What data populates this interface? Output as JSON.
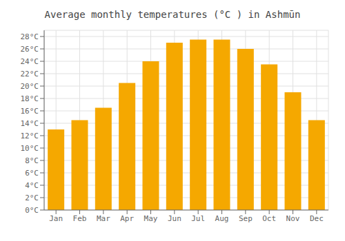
{
  "chart_data": {
    "type": "bar",
    "title": "Average monthly temperatures (°C ) in Ashmūn",
    "categories": [
      "Jan",
      "Feb",
      "Mar",
      "Apr",
      "May",
      "Jun",
      "Jul",
      "Aug",
      "Sep",
      "Oct",
      "Nov",
      "Dec"
    ],
    "values": [
      13.0,
      14.5,
      16.5,
      20.5,
      24.0,
      27.0,
      27.5,
      27.5,
      26.0,
      23.5,
      19.0,
      14.5
    ],
    "color": "#F5A800",
    "ylim": [
      0,
      29
    ],
    "yticks": [
      {
        "value": 0,
        "label": "0°C"
      },
      {
        "value": 2,
        "label": "2°C"
      },
      {
        "value": 4,
        "label": "4°C"
      },
      {
        "value": 6,
        "label": "6°C"
      },
      {
        "value": 8,
        "label": "8°C"
      },
      {
        "value": 10,
        "label": "10°C"
      },
      {
        "value": 12,
        "label": "12°C"
      },
      {
        "value": 14,
        "label": "14°C"
      },
      {
        "value": 16,
        "label": "16°C"
      },
      {
        "value": 18,
        "label": "18°C"
      },
      {
        "value": 20,
        "label": "20°C"
      },
      {
        "value": 22,
        "label": "22°C"
      },
      {
        "value": 24,
        "label": "24°C"
      },
      {
        "value": 26,
        "label": "26°C"
      },
      {
        "value": 28,
        "label": "28°C"
      }
    ],
    "grid": true
  }
}
